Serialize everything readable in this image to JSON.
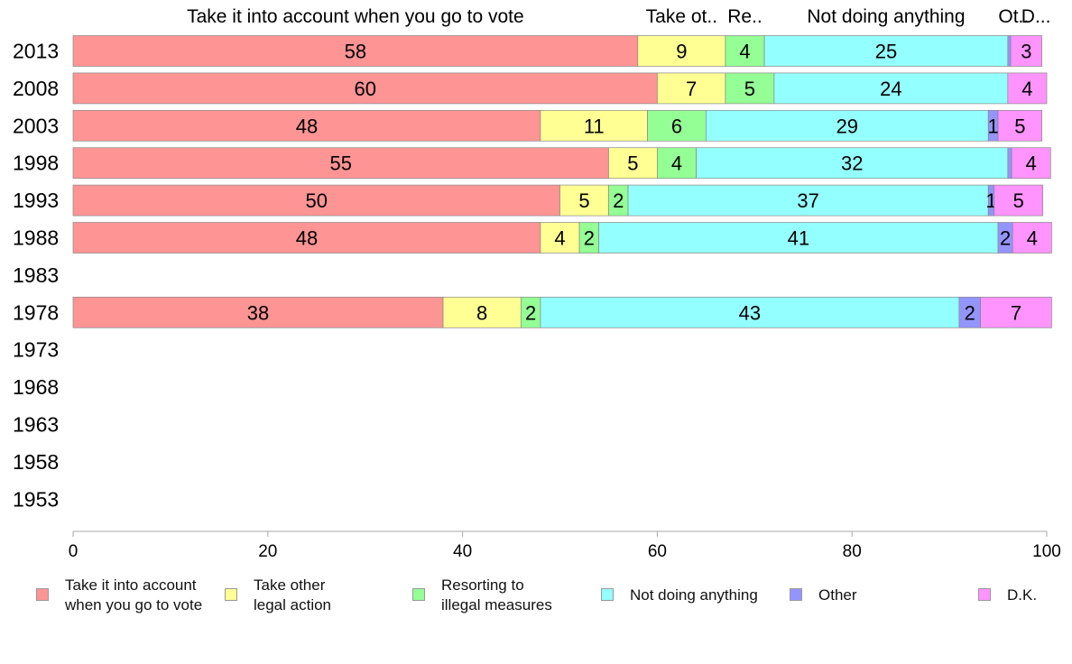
{
  "chart_data": {
    "type": "bar",
    "orientation": "horizontal",
    "stacked": true,
    "categories": [
      "2013",
      "2008",
      "2003",
      "1998",
      "1993",
      "1988",
      "1983",
      "1978",
      "1973",
      "1968",
      "1963",
      "1958",
      "1953"
    ],
    "series": [
      {
        "name": "Take it into account when you go to vote",
        "color": "#ff9494",
        "values": [
          58,
          60,
          48,
          55,
          50,
          48,
          null,
          38,
          null,
          null,
          null,
          null,
          null
        ],
        "labels": [
          "58",
          "60",
          "48",
          "55",
          "50",
          "48",
          "",
          "38",
          "",
          "",
          "",
          "",
          ""
        ]
      },
      {
        "name": "Take other legal action",
        "color": "#ffff94",
        "values": [
          9,
          7,
          11,
          5,
          5,
          4,
          null,
          8,
          null,
          null,
          null,
          null,
          null
        ],
        "labels": [
          "9",
          "7",
          "11",
          "5",
          "5",
          "4",
          "",
          "8",
          "",
          "",
          "",
          "",
          ""
        ]
      },
      {
        "name": "Resorting to illegal measures",
        "color": "#94ff94",
        "values": [
          4,
          5,
          6,
          4,
          2,
          2,
          null,
          2,
          null,
          null,
          null,
          null,
          null
        ],
        "labels": [
          "4",
          "5",
          "6",
          "4",
          "2",
          "2",
          "",
          "2",
          "",
          "",
          "",
          "",
          ""
        ]
      },
      {
        "name": "Not doing anything",
        "color": "#94ffff",
        "values": [
          25,
          24,
          29,
          32,
          37,
          41,
          null,
          43,
          null,
          null,
          null,
          null,
          null
        ],
        "labels": [
          "25",
          "24",
          "29",
          "32",
          "37",
          "41",
          "",
          "43",
          "",
          "",
          "",
          "",
          ""
        ]
      },
      {
        "name": "Other",
        "color": "#9494ff",
        "values": [
          0.3,
          0,
          1,
          0.4,
          0.6,
          1.5,
          null,
          2.2,
          null,
          null,
          null,
          null,
          null
        ],
        "labels": [
          "",
          "",
          "1",
          "",
          "1",
          "2",
          "",
          "2",
          "",
          "",
          "",
          "",
          ""
        ]
      },
      {
        "name": "D.K.",
        "color": "#ff94ff",
        "values": [
          3.2,
          4,
          4.5,
          4,
          5,
          4,
          null,
          7.3,
          null,
          null,
          null,
          null,
          null
        ],
        "labels": [
          "3",
          "4",
          "5",
          "4",
          "5",
          "4",
          "",
          "7",
          "",
          "",
          "",
          "",
          ""
        ]
      }
    ],
    "top_labels": [
      "Take it into account when you go to vote",
      "Take ot..",
      "Re..",
      "Not doing anything",
      "Ot..",
      "D..."
    ],
    "xlim": [
      0,
      100
    ],
    "xticks": [
      "0",
      "20",
      "40",
      "60",
      "80",
      "100"
    ],
    "grid": false,
    "legend_position": "bottom"
  },
  "legend": [
    {
      "label": "Take it into account\nwhen you go to vote",
      "color": "#ff9494"
    },
    {
      "label": "Take other\nlegal action",
      "color": "#ffff94"
    },
    {
      "label": "Resorting to\nillegal measures",
      "color": "#94ff94"
    },
    {
      "label": "Not doing anything",
      "color": "#94ffff"
    },
    {
      "label": "Other",
      "color": "#9494ff"
    },
    {
      "label": "D.K.",
      "color": "#ff94ff"
    }
  ]
}
